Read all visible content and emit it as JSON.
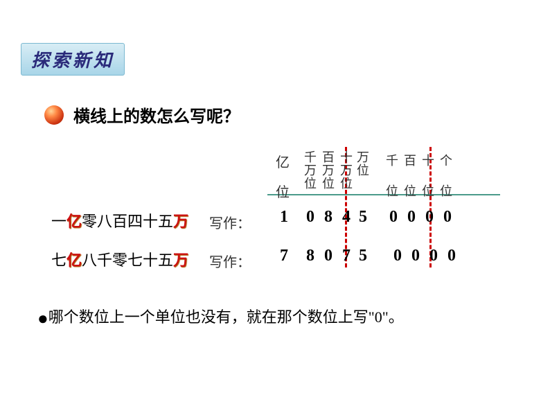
{
  "header": {
    "badge_text": "探索新知"
  },
  "question": {
    "text": "横线上的数怎么写呢？"
  },
  "place_values": {
    "yi": {
      "top": "亿",
      "bot": "位"
    },
    "wan": [
      {
        "l1": "千",
        "l2": "万",
        "l3": "位"
      },
      {
        "l1": "百",
        "l2": "万",
        "l3": "位"
      },
      {
        "l1": "十",
        "l2": "万",
        "l3": "位"
      },
      {
        "l1": "万",
        "l2": "",
        "l3": "位"
      }
    ],
    "ge": [
      {
        "l1": "千",
        "l3": "位"
      },
      {
        "l1": "百",
        "l3": "位"
      },
      {
        "l1": "十",
        "l3": "位"
      },
      {
        "l1": "个",
        "l3": "位"
      }
    ]
  },
  "rows": [
    {
      "prefix": "一",
      "marker1": "亿",
      "mid": "零八百四十五",
      "marker2": "万",
      "label": "写作：",
      "digits": {
        "yi": "1",
        "w1": "0",
        "w2": "8",
        "w3": "4",
        "w4": "5",
        "g1": "0",
        "g2": "0",
        "g3": "0",
        "g4": "0"
      }
    },
    {
      "prefix": "七",
      "marker1": "亿",
      "mid": "八千零七十五",
      "marker2": "万",
      "label": "写作：",
      "digits": {
        "yi": "7",
        "w1": "8",
        "w2": "0",
        "w3": "7",
        "w4": "5",
        "g1": "0",
        "g2": "0",
        "g3": "0",
        "g4": "0"
      }
    }
  ],
  "conclusion": {
    "bullet": "●",
    "text_before": "哪个数位上一个单位也没有，就在那个数位上写",
    "quoted": "\"0\"",
    "text_after": "。"
  },
  "colors": {
    "dashed": "#cc0000",
    "underline": "#4a9a8a",
    "red_char": "#cc1111",
    "badge_text": "#2a2a7a"
  }
}
